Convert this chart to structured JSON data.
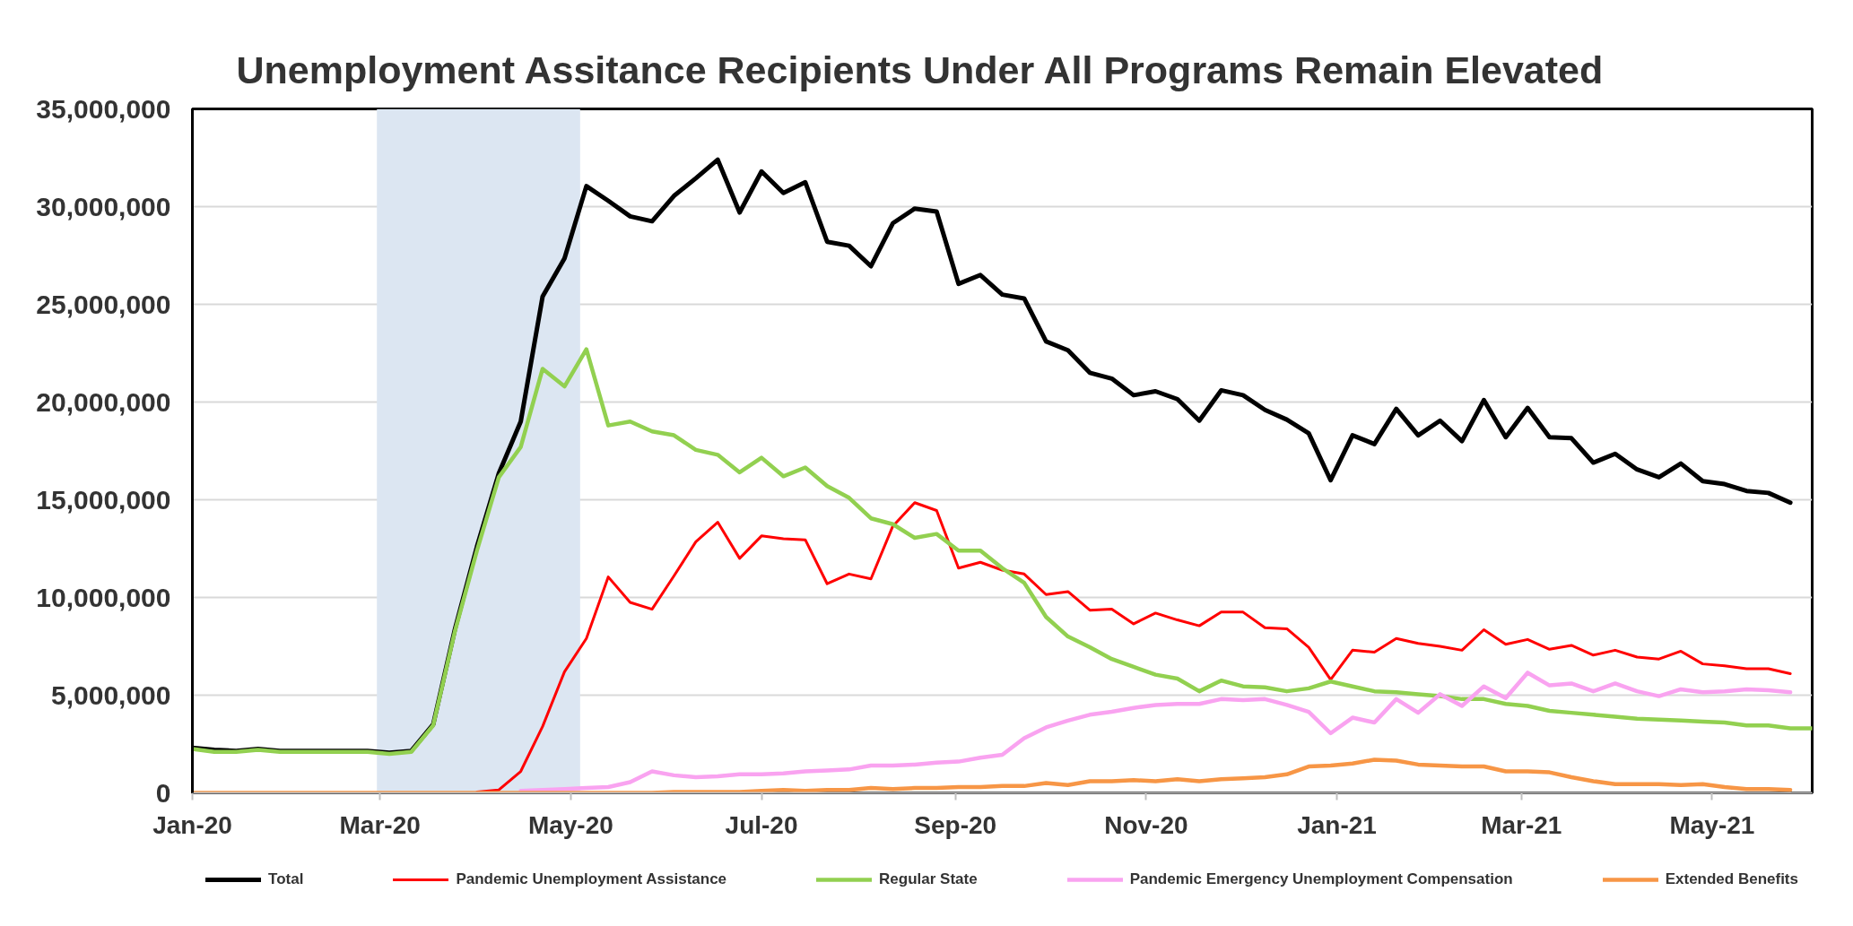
{
  "chart_data": {
    "type": "line",
    "title": "Unemployment Assitance Recipients Under All Programs Remain Elevated",
    "x": [
      "2020-01-04",
      "2020-01-11",
      "2020-01-18",
      "2020-01-25",
      "2020-02-01",
      "2020-02-08",
      "2020-02-15",
      "2020-02-22",
      "2020-02-29",
      "2020-03-07",
      "2020-03-14",
      "2020-03-21",
      "2020-03-28",
      "2020-04-04",
      "2020-04-11",
      "2020-04-18",
      "2020-04-25",
      "2020-05-02",
      "2020-05-09",
      "2020-05-16",
      "2020-05-23",
      "2020-05-30",
      "2020-06-06",
      "2020-06-13",
      "2020-06-20",
      "2020-06-27",
      "2020-07-04",
      "2020-07-11",
      "2020-07-18",
      "2020-07-25",
      "2020-08-01",
      "2020-08-08",
      "2020-08-15",
      "2020-08-22",
      "2020-08-29",
      "2020-09-05",
      "2020-09-12",
      "2020-09-19",
      "2020-09-26",
      "2020-10-03",
      "2020-10-10",
      "2020-10-17",
      "2020-10-24",
      "2020-10-31",
      "2020-11-07",
      "2020-11-14",
      "2020-11-21",
      "2020-11-28",
      "2020-12-05",
      "2020-12-12",
      "2020-12-19",
      "2020-12-26",
      "2021-01-02",
      "2021-01-09",
      "2021-01-16",
      "2021-01-23",
      "2021-01-30",
      "2021-02-06",
      "2021-02-13",
      "2021-02-20",
      "2021-02-27",
      "2021-03-06",
      "2021-03-13",
      "2021-03-20",
      "2021-03-27",
      "2021-04-03",
      "2021-04-10",
      "2021-04-17",
      "2021-04-24",
      "2021-05-01",
      "2021-05-08",
      "2021-05-15",
      "2021-05-22",
      "2021-05-29",
      "2021-06-05"
    ],
    "series": [
      {
        "name": "Total",
        "color": "#000000",
        "values": [
          2300000,
          2200000,
          2150000,
          2250000,
          2150000,
          2150000,
          2150000,
          2150000,
          2150000,
          2050000,
          2150000,
          3500000,
          8400000,
          12600000,
          16350000,
          19000000,
          25400000,
          27350000,
          31050000,
          30300000,
          29500000,
          29250000,
          30550000,
          31450000,
          32400000,
          29700000,
          31800000,
          30700000,
          31250000,
          28200000,
          28000000,
          26950000,
          29150000,
          29900000,
          29750000,
          26050000,
          26500000,
          25500000,
          25300000,
          23100000,
          22650000,
          21500000,
          21200000,
          20350000,
          20550000,
          20150000,
          19050000,
          20600000,
          20350000,
          19600000,
          19100000,
          18400000,
          16000000,
          18300000,
          17850000,
          19650000,
          18300000,
          19050000,
          18000000,
          20100000,
          18200000,
          19700000,
          18200000,
          18150000,
          16900000,
          17350000,
          16550000,
          16150000,
          16850000,
          15950000,
          15800000,
          15450000,
          15350000,
          14850000,
          null
        ]
      },
      {
        "name": "Pandemic Unemployment Assistance",
        "color": "#ff0000",
        "values": [
          null,
          null,
          null,
          null,
          null,
          null,
          null,
          null,
          null,
          null,
          null,
          null,
          null,
          50000,
          150000,
          1100000,
          3400000,
          6200000,
          7900000,
          11050000,
          9750000,
          9400000,
          11100000,
          12850000,
          13850000,
          12000000,
          13150000,
          13000000,
          12950000,
          10700000,
          11200000,
          10950000,
          13650000,
          14850000,
          14450000,
          11500000,
          11800000,
          11400000,
          11200000,
          10150000,
          10300000,
          9350000,
          9400000,
          8650000,
          9200000,
          8850000,
          8550000,
          9250000,
          9250000,
          8450000,
          8400000,
          7450000,
          5800000,
          7300000,
          7200000,
          7900000,
          7650000,
          7500000,
          7300000,
          8350000,
          7600000,
          7850000,
          7350000,
          7550000,
          7050000,
          7300000,
          6950000,
          6850000,
          7250000,
          6600000,
          6500000,
          6350000,
          6350000,
          6100000,
          null
        ]
      },
      {
        "name": "Regular State",
        "color": "#92d050",
        "values": [
          2250000,
          2100000,
          2100000,
          2200000,
          2100000,
          2100000,
          2100000,
          2100000,
          2100000,
          2000000,
          2100000,
          3450000,
          8300000,
          12400000,
          16150000,
          17700000,
          21700000,
          20800000,
          22700000,
          18800000,
          19000000,
          18500000,
          18300000,
          17550000,
          17300000,
          16400000,
          17150000,
          16200000,
          16650000,
          15700000,
          15100000,
          14050000,
          13750000,
          13050000,
          13250000,
          12400000,
          12400000,
          11500000,
          10750000,
          9000000,
          8000000,
          7450000,
          6850000,
          6450000,
          6050000,
          5850000,
          5200000,
          5750000,
          5450000,
          5400000,
          5200000,
          5350000,
          5700000,
          5450000,
          5200000,
          5150000,
          5050000,
          4950000,
          4800000,
          4800000,
          4550000,
          4450000,
          4200000,
          4100000,
          4000000,
          3900000,
          3800000,
          3750000,
          3700000,
          3650000,
          3600000,
          3450000,
          3450000,
          3300000,
          3300000
        ]
      },
      {
        "name": "Pandemic Emergency Unemployment Compensation",
        "color": "#f9a3f0",
        "values": [
          null,
          null,
          null,
          null,
          null,
          null,
          null,
          null,
          null,
          null,
          null,
          null,
          null,
          null,
          null,
          100000,
          150000,
          200000,
          250000,
          300000,
          550000,
          1100000,
          900000,
          800000,
          850000,
          950000,
          950000,
          1000000,
          1100000,
          1150000,
          1200000,
          1400000,
          1400000,
          1450000,
          1550000,
          1600000,
          1800000,
          1950000,
          2800000,
          3350000,
          3700000,
          4000000,
          4150000,
          4350000,
          4500000,
          4550000,
          4550000,
          4800000,
          4750000,
          4800000,
          4500000,
          4150000,
          3050000,
          3850000,
          3600000,
          4800000,
          4100000,
          5050000,
          4450000,
          5450000,
          4850000,
          6150000,
          5500000,
          5600000,
          5200000,
          5600000,
          5200000,
          4950000,
          5300000,
          5150000,
          5200000,
          5300000,
          5250000,
          5150000,
          null
        ]
      },
      {
        "name": "Extended Benefits",
        "color": "#f79646",
        "values": [
          0,
          0,
          0,
          0,
          0,
          0,
          0,
          0,
          0,
          0,
          0,
          0,
          0,
          0,
          0,
          0,
          0,
          0,
          0,
          0,
          0,
          0,
          50000,
          50000,
          50000,
          50000,
          100000,
          150000,
          100000,
          150000,
          150000,
          250000,
          200000,
          250000,
          250000,
          300000,
          300000,
          350000,
          350000,
          500000,
          400000,
          600000,
          600000,
          650000,
          600000,
          700000,
          600000,
          700000,
          750000,
          800000,
          950000,
          1350000,
          1400000,
          1500000,
          1700000,
          1650000,
          1450000,
          1400000,
          1350000,
          1350000,
          1100000,
          1100000,
          1050000,
          800000,
          600000,
          450000,
          450000,
          450000,
          400000,
          450000,
          300000,
          200000,
          200000,
          150000,
          null
        ]
      }
    ],
    "xlim": [
      "2020-01-04",
      "2021-06-05"
    ],
    "xticks": [
      {
        "value": "2020-01-04",
        "label": "Jan-20"
      },
      {
        "value": "2020-03-04",
        "label": "Mar-20"
      },
      {
        "value": "2020-05-04",
        "label": "May-20"
      },
      {
        "value": "2020-07-04",
        "label": "Jul-20"
      },
      {
        "value": "2020-09-04",
        "label": "Sep-20"
      },
      {
        "value": "2020-11-04",
        "label": "Nov-20"
      },
      {
        "value": "2021-01-04",
        "label": "Jan-21"
      },
      {
        "value": "2021-03-04",
        "label": "Mar-21"
      },
      {
        "value": "2021-05-04",
        "label": "May-21"
      }
    ],
    "ylim": [
      0,
      35000000
    ],
    "yticks": [
      0,
      {
        "value": 5000000,
        "label": "5,000,000"
      },
      {
        "value": 10000000,
        "label": "10,000,000"
      },
      {
        "value": 15000000,
        "label": "15,000,000"
      },
      {
        "value": 20000000,
        "label": "20,000,000"
      },
      {
        "value": 25000000,
        "label": "25,000,000"
      },
      {
        "value": 30000000,
        "label": "30,000,000"
      },
      {
        "value": 35000000,
        "label": "35,000,000"
      }
    ],
    "bands": [
      {
        "axis": "x",
        "from": "2020-03-03",
        "to": "2020-05-07",
        "color": "#dce6f2"
      }
    ],
    "grid": "y",
    "legend": "bottom"
  }
}
